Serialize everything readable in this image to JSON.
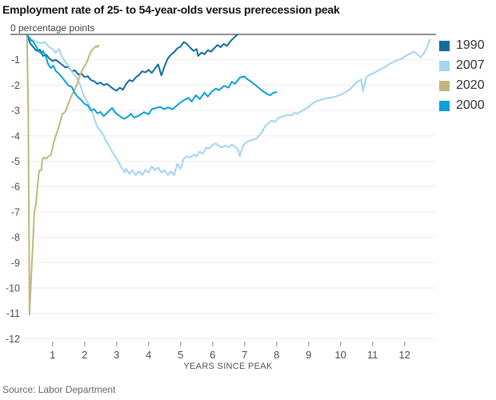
{
  "title": "Employment rate of 25- to 54-year-olds versus prerecession peak",
  "y_axis_top_label": "0 percentage points",
  "x_axis_label": "YEARS SINCE PEAK",
  "source": "Source: Labor Department",
  "legend": [
    {
      "label": "1990",
      "color": "#0f6d9d"
    },
    {
      "label": "2007",
      "color": "#a4d4f1"
    },
    {
      "label": "2020",
      "color": "#bfb77d"
    },
    {
      "label": "2000",
      "color": "#0aa0dc"
    }
  ],
  "colors": {
    "zero_line": "#8f8f8f",
    "gridline": "#ececec",
    "tick": "#8f8f8f"
  },
  "chart_data": {
    "type": "line",
    "title": "Employment rate of 25- to 54-year-olds versus prerecession peak",
    "xlabel": "YEARS SINCE PEAK",
    "ylabel": "percentage points",
    "xlim": [
      0,
      13
    ],
    "ylim": [
      -12.5,
      0
    ],
    "x_ticks": [
      1,
      2,
      3,
      4,
      5,
      6,
      7,
      8,
      9,
      10,
      11,
      12
    ],
    "y_ticks": [
      -1,
      -2,
      -3,
      -4,
      -5,
      -6,
      -7,
      -8,
      -9,
      -10,
      -11,
      -12
    ],
    "grid": true,
    "legend_position": "right",
    "series": [
      {
        "name": "1990",
        "color": "#0f6d9d",
        "points": [
          [
            0.2,
            0
          ],
          [
            0.3,
            -0.35
          ],
          [
            0.4,
            -0.5
          ],
          [
            0.5,
            -0.65
          ],
          [
            0.6,
            -0.6
          ],
          [
            0.7,
            -0.85
          ],
          [
            0.8,
            -0.8
          ],
          [
            0.9,
            -0.95
          ],
          [
            1.0,
            -1.05
          ],
          [
            1.1,
            -1.0
          ],
          [
            1.2,
            -1.1
          ],
          [
            1.3,
            -1.2
          ],
          [
            1.4,
            -1.3
          ],
          [
            1.5,
            -1.28
          ],
          [
            1.6,
            -1.45
          ],
          [
            1.7,
            -1.42
          ],
          [
            1.8,
            -1.58
          ],
          [
            1.9,
            -1.55
          ],
          [
            2.0,
            -1.68
          ],
          [
            2.1,
            -1.65
          ],
          [
            2.2,
            -1.8
          ],
          [
            2.3,
            -1.85
          ],
          [
            2.4,
            -1.95
          ],
          [
            2.5,
            -1.9
          ],
          [
            2.6,
            -2.0
          ],
          [
            2.7,
            -1.95
          ],
          [
            2.8,
            -2.05
          ],
          [
            2.9,
            -2.15
          ],
          [
            3.0,
            -2.22
          ],
          [
            3.1,
            -2.1
          ],
          [
            3.2,
            -2.18
          ],
          [
            3.3,
            -1.95
          ],
          [
            3.4,
            -1.8
          ],
          [
            3.5,
            -1.85
          ],
          [
            3.6,
            -1.7
          ],
          [
            3.7,
            -1.6
          ],
          [
            3.8,
            -1.45
          ],
          [
            3.9,
            -1.5
          ],
          [
            4.0,
            -1.4
          ],
          [
            4.1,
            -1.52
          ],
          [
            4.2,
            -1.35
          ],
          [
            4.3,
            -1.18
          ],
          [
            4.35,
            -1.4
          ],
          [
            4.4,
            -1.62
          ],
          [
            4.5,
            -1.25
          ],
          [
            4.6,
            -0.95
          ],
          [
            4.7,
            -0.8
          ],
          [
            4.8,
            -0.7
          ],
          [
            4.9,
            -0.55
          ],
          [
            5.0,
            -0.48
          ],
          [
            5.1,
            -0.3
          ],
          [
            5.2,
            -0.38
          ],
          [
            5.3,
            -0.52
          ],
          [
            5.4,
            -0.65
          ],
          [
            5.5,
            -0.58
          ],
          [
            5.55,
            -0.85
          ],
          [
            5.65,
            -0.72
          ],
          [
            5.75,
            -0.78
          ],
          [
            5.85,
            -0.62
          ],
          [
            5.95,
            -0.68
          ],
          [
            6.05,
            -0.55
          ],
          [
            6.15,
            -0.42
          ],
          [
            6.25,
            -0.5
          ],
          [
            6.35,
            -0.38
          ],
          [
            6.45,
            -0.45
          ],
          [
            6.55,
            -0.28
          ],
          [
            6.65,
            -0.15
          ],
          [
            6.78,
            0
          ]
        ]
      },
      {
        "name": "2007",
        "color": "#a4d4f1",
        "points": [
          [
            0.2,
            0
          ],
          [
            0.35,
            -0.2
          ],
          [
            0.5,
            -0.3
          ],
          [
            0.6,
            -0.35
          ],
          [
            0.75,
            -0.3
          ],
          [
            0.9,
            -0.5
          ],
          [
            1.0,
            -0.57
          ],
          [
            1.1,
            -0.72
          ],
          [
            1.2,
            -0.57
          ],
          [
            1.3,
            -0.9
          ],
          [
            1.45,
            -1.15
          ],
          [
            1.55,
            -1.35
          ],
          [
            1.65,
            -1.55
          ],
          [
            1.75,
            -1.7
          ],
          [
            1.85,
            -1.95
          ],
          [
            1.95,
            -2.35
          ],
          [
            2.05,
            -2.6
          ],
          [
            2.15,
            -2.8
          ],
          [
            2.25,
            -3.1
          ],
          [
            2.3,
            -3.3
          ],
          [
            2.4,
            -3.65
          ],
          [
            2.5,
            -3.8
          ],
          [
            2.6,
            -4.0
          ],
          [
            2.65,
            -4.15
          ],
          [
            2.75,
            -4.35
          ],
          [
            2.85,
            -4.6
          ],
          [
            2.95,
            -4.8
          ],
          [
            3.05,
            -5.0
          ],
          [
            3.15,
            -5.25
          ],
          [
            3.25,
            -5.45
          ],
          [
            3.3,
            -5.3
          ],
          [
            3.4,
            -5.5
          ],
          [
            3.5,
            -5.35
          ],
          [
            3.6,
            -5.55
          ],
          [
            3.7,
            -5.4
          ],
          [
            3.8,
            -5.55
          ],
          [
            3.9,
            -5.35
          ],
          [
            4.0,
            -5.45
          ],
          [
            4.1,
            -5.2
          ],
          [
            4.2,
            -5.35
          ],
          [
            4.3,
            -5.25
          ],
          [
            4.4,
            -5.45
          ],
          [
            4.5,
            -5.35
          ],
          [
            4.6,
            -5.55
          ],
          [
            4.7,
            -5.4
          ],
          [
            4.8,
            -5.55
          ],
          [
            4.9,
            -5.1
          ],
          [
            5.0,
            -5.3
          ],
          [
            5.1,
            -4.9
          ],
          [
            5.2,
            -4.8
          ],
          [
            5.3,
            -4.85
          ],
          [
            5.4,
            -4.75
          ],
          [
            5.5,
            -4.8
          ],
          [
            5.6,
            -4.62
          ],
          [
            5.7,
            -4.7
          ],
          [
            5.8,
            -4.46
          ],
          [
            5.9,
            -4.5
          ],
          [
            6.0,
            -4.35
          ],
          [
            6.1,
            -4.3
          ],
          [
            6.2,
            -4.4
          ],
          [
            6.3,
            -4.45
          ],
          [
            6.4,
            -4.38
          ],
          [
            6.5,
            -4.45
          ],
          [
            6.6,
            -4.35
          ],
          [
            6.7,
            -4.42
          ],
          [
            6.8,
            -4.55
          ],
          [
            6.85,
            -4.8
          ],
          [
            6.95,
            -4.4
          ],
          [
            7.05,
            -4.25
          ],
          [
            7.15,
            -4.2
          ],
          [
            7.25,
            -4.15
          ],
          [
            7.35,
            -4.12
          ],
          [
            7.45,
            -4.0
          ],
          [
            7.55,
            -3.85
          ],
          [
            7.65,
            -3.6
          ],
          [
            7.75,
            -3.5
          ],
          [
            7.85,
            -3.4
          ],
          [
            7.95,
            -3.45
          ],
          [
            8.05,
            -3.3
          ],
          [
            8.15,
            -3.25
          ],
          [
            8.25,
            -3.22
          ],
          [
            8.35,
            -3.18
          ],
          [
            8.45,
            -3.2
          ],
          [
            8.55,
            -3.1
          ],
          [
            8.65,
            -3.12
          ],
          [
            8.75,
            -3.05
          ],
          [
            8.85,
            -2.97
          ],
          [
            8.95,
            -2.9
          ],
          [
            9.05,
            -2.8
          ],
          [
            9.15,
            -2.7
          ],
          [
            9.25,
            -2.62
          ],
          [
            9.35,
            -2.6
          ],
          [
            9.45,
            -2.55
          ],
          [
            9.55,
            -2.52
          ],
          [
            9.65,
            -2.5
          ],
          [
            9.75,
            -2.48
          ],
          [
            9.85,
            -2.45
          ],
          [
            9.95,
            -2.4
          ],
          [
            10.05,
            -2.35
          ],
          [
            10.15,
            -2.28
          ],
          [
            10.25,
            -2.2
          ],
          [
            10.35,
            -2.1
          ],
          [
            10.45,
            -1.95
          ],
          [
            10.55,
            -1.85
          ],
          [
            10.65,
            -1.78
          ],
          [
            10.7,
            -2.25
          ],
          [
            10.8,
            -1.7
          ],
          [
            10.9,
            -1.6
          ],
          [
            11.0,
            -1.55
          ],
          [
            11.1,
            -1.48
          ],
          [
            11.2,
            -1.4
          ],
          [
            11.3,
            -1.35
          ],
          [
            11.4,
            -1.28
          ],
          [
            11.5,
            -1.18
          ],
          [
            11.6,
            -1.12
          ],
          [
            11.7,
            -1.06
          ],
          [
            11.8,
            -1.0
          ],
          [
            11.9,
            -0.97
          ],
          [
            12.0,
            -0.88
          ],
          [
            12.1,
            -0.8
          ],
          [
            12.2,
            -0.75
          ],
          [
            12.3,
            -0.68
          ],
          [
            12.4,
            -0.78
          ],
          [
            12.5,
            -0.9
          ],
          [
            12.6,
            -0.75
          ],
          [
            12.7,
            -0.5
          ],
          [
            12.8,
            -0.2
          ]
        ]
      },
      {
        "name": "2020",
        "color": "#bfb77d",
        "points": [
          [
            0.2,
            0
          ],
          [
            0.24,
            -3.0
          ],
          [
            0.28,
            -11.05
          ],
          [
            0.33,
            -9.6
          ],
          [
            0.38,
            -8.4
          ],
          [
            0.43,
            -7.0
          ],
          [
            0.48,
            -6.7
          ],
          [
            0.53,
            -6.0
          ],
          [
            0.57,
            -5.5
          ],
          [
            0.6,
            -5.35
          ],
          [
            0.65,
            -5.35
          ],
          [
            0.68,
            -4.95
          ],
          [
            0.73,
            -4.85
          ],
          [
            0.8,
            -4.9
          ],
          [
            0.88,
            -4.8
          ],
          [
            0.95,
            -4.75
          ],
          [
            1.03,
            -4.3
          ],
          [
            1.1,
            -4.0
          ],
          [
            1.18,
            -3.7
          ],
          [
            1.23,
            -3.5
          ],
          [
            1.3,
            -3.15
          ],
          [
            1.4,
            -3.05
          ],
          [
            1.5,
            -2.7
          ],
          [
            1.6,
            -2.4
          ],
          [
            1.68,
            -2.2
          ],
          [
            1.77,
            -1.95
          ],
          [
            1.86,
            -1.6
          ],
          [
            1.95,
            -1.35
          ],
          [
            2.03,
            -1.2
          ],
          [
            2.1,
            -1.0
          ],
          [
            2.18,
            -0.72
          ],
          [
            2.25,
            -0.6
          ],
          [
            2.32,
            -0.5
          ],
          [
            2.36,
            -0.45
          ],
          [
            2.4,
            -0.5
          ],
          [
            2.45,
            -0.43
          ]
        ]
      },
      {
        "name": "2000",
        "color": "#0aa0dc",
        "points": [
          [
            0.2,
            0
          ],
          [
            0.3,
            -0.2
          ],
          [
            0.4,
            -0.3
          ],
          [
            0.5,
            -0.5
          ],
          [
            0.55,
            -0.65
          ],
          [
            0.65,
            -0.75
          ],
          [
            0.7,
            -0.65
          ],
          [
            0.8,
            -0.9
          ],
          [
            0.86,
            -1.17
          ],
          [
            0.95,
            -1.33
          ],
          [
            1.02,
            -1.23
          ],
          [
            1.1,
            -1.44
          ],
          [
            1.2,
            -1.55
          ],
          [
            1.3,
            -1.7
          ],
          [
            1.4,
            -1.86
          ],
          [
            1.5,
            -2.02
          ],
          [
            1.6,
            -2.07
          ],
          [
            1.7,
            -2.33
          ],
          [
            1.8,
            -2.48
          ],
          [
            1.9,
            -2.59
          ],
          [
            2.0,
            -2.74
          ],
          [
            2.1,
            -2.8
          ],
          [
            2.2,
            -3.0
          ],
          [
            2.3,
            -2.95
          ],
          [
            2.4,
            -3.11
          ],
          [
            2.5,
            -3.06
          ],
          [
            2.6,
            -3.22
          ],
          [
            2.7,
            -3.1
          ],
          [
            2.86,
            -2.9
          ],
          [
            2.95,
            -3.07
          ],
          [
            3.05,
            -3.18
          ],
          [
            3.23,
            -3.33
          ],
          [
            3.35,
            -3.25
          ],
          [
            3.45,
            -3.13
          ],
          [
            3.55,
            -3.28
          ],
          [
            3.7,
            -3.2
          ],
          [
            3.86,
            -3.07
          ],
          [
            4.0,
            -3.15
          ],
          [
            4.1,
            -2.95
          ],
          [
            4.36,
            -2.86
          ],
          [
            4.5,
            -2.95
          ],
          [
            4.6,
            -2.88
          ],
          [
            4.75,
            -2.95
          ],
          [
            4.98,
            -2.7
          ],
          [
            5.1,
            -2.6
          ],
          [
            5.25,
            -2.5
          ],
          [
            5.35,
            -2.65
          ],
          [
            5.48,
            -2.4
          ],
          [
            5.6,
            -2.55
          ],
          [
            5.75,
            -2.3
          ],
          [
            5.85,
            -2.45
          ],
          [
            5.98,
            -2.25
          ],
          [
            6.1,
            -2.14
          ],
          [
            6.2,
            -2.2
          ],
          [
            6.36,
            -2.03
          ],
          [
            6.5,
            -2.1
          ],
          [
            6.6,
            -1.87
          ],
          [
            6.7,
            -1.95
          ],
          [
            6.86,
            -1.7
          ],
          [
            7.0,
            -1.66
          ],
          [
            7.1,
            -1.78
          ],
          [
            7.2,
            -1.86
          ],
          [
            7.36,
            -2.02
          ],
          [
            7.5,
            -2.17
          ],
          [
            7.7,
            -2.35
          ],
          [
            7.8,
            -2.4
          ],
          [
            7.9,
            -2.3
          ],
          [
            8.0,
            -2.28
          ]
        ]
      }
    ]
  }
}
